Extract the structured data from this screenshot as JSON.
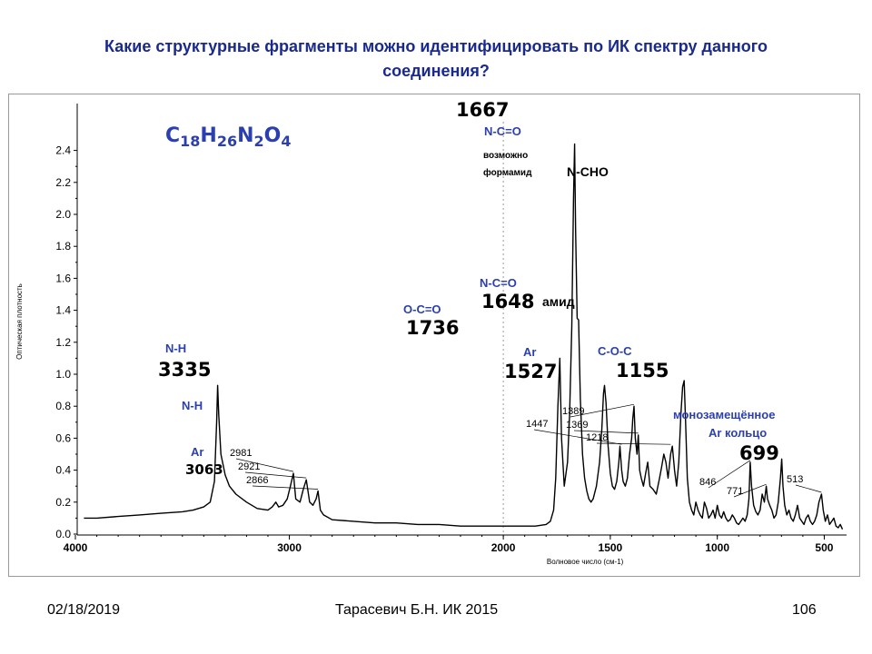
{
  "slide": {
    "title_line1": "Какие структурные фрагменты можно идентифицировать по ИК спектру данного",
    "title_line2": "соединения?"
  },
  "footer": {
    "date": "02/18/2019",
    "author": "Тарасевич Б.Н.  ИК 2015",
    "page": "106"
  },
  "chart_data": {
    "type": "line",
    "x_reversed": true,
    "xlim": [
      4000,
      400
    ],
    "ylim": [
      0,
      2.5
    ],
    "x_ticks": [
      4000,
      3000,
      2000,
      1500,
      1000,
      500
    ],
    "y_ticks": [
      0.0,
      0.2,
      0.4,
      0.6,
      0.8,
      1.0,
      1.2,
      1.4,
      1.6,
      1.8,
      2.0,
      2.2,
      2.4
    ],
    "xlabel": "Волновое число (см-1)",
    "ylabel": "Оптическая плотность",
    "formula": {
      "c": "C",
      "n1": "18",
      "h": "H",
      "n2": "26",
      "n": "N",
      "n3": "2",
      "o": "O",
      "n4": "4"
    },
    "colors": {
      "line": "#000000",
      "annotation": "#2b3fb0",
      "axis": "#000000"
    },
    "series": [
      {
        "x": [
          3960,
          3900,
          3800,
          3700,
          3600,
          3500,
          3450,
          3400,
          3370,
          3350,
          3340,
          3335,
          3330,
          3320,
          3300,
          3280,
          3250,
          3200,
          3150,
          3100,
          3080,
          3063,
          3050,
          3030,
          3010,
          2995,
          2981,
          2970,
          2950,
          2935,
          2921,
          2905,
          2890,
          2875,
          2866,
          2855,
          2840,
          2800,
          2700,
          2600,
          2500,
          2400,
          2300,
          2200,
          2100,
          2000,
          1950,
          1900,
          1850,
          1800,
          1780,
          1765,
          1755,
          1745,
          1736,
          1728,
          1715,
          1700,
          1690,
          1680,
          1672,
          1667,
          1662,
          1655,
          1648,
          1640,
          1630,
          1620,
          1610,
          1600,
          1590,
          1580,
          1565,
          1550,
          1540,
          1532,
          1527,
          1520,
          1510,
          1500,
          1490,
          1480,
          1470,
          1460,
          1455,
          1447,
          1440,
          1430,
          1420,
          1410,
          1400,
          1395,
          1389,
          1383,
          1375,
          1369,
          1363,
          1355,
          1345,
          1335,
          1325,
          1315,
          1300,
          1285,
          1270,
          1260,
          1250,
          1240,
          1230,
          1218,
          1210,
          1200,
          1190,
          1180,
          1170,
          1162,
          1155,
          1148,
          1140,
          1130,
          1120,
          1110,
          1100,
          1090,
          1080,
          1070,
          1060,
          1050,
          1040,
          1030,
          1020,
          1010,
          1000,
          990,
          980,
          970,
          960,
          950,
          940,
          930,
          920,
          910,
          900,
          890,
          880,
          870,
          860,
          852,
          846,
          840,
          830,
          820,
          810,
          800,
          790,
          780,
          771,
          765,
          755,
          745,
          735,
          725,
          715,
          705,
          699,
          693,
          685,
          675,
          665,
          655,
          645,
          635,
          625,
          615,
          605,
          595,
          585,
          575,
          565,
          555,
          545,
          535,
          525,
          513,
          505,
          495,
          485,
          475,
          465,
          455,
          445,
          435,
          425,
          415
        ],
        "y": [
          0.1,
          0.1,
          0.11,
          0.12,
          0.13,
          0.14,
          0.15,
          0.17,
          0.2,
          0.33,
          0.7,
          0.93,
          0.75,
          0.5,
          0.37,
          0.3,
          0.25,
          0.2,
          0.16,
          0.15,
          0.17,
          0.2,
          0.17,
          0.18,
          0.22,
          0.3,
          0.38,
          0.22,
          0.2,
          0.28,
          0.34,
          0.2,
          0.18,
          0.22,
          0.27,
          0.15,
          0.12,
          0.09,
          0.08,
          0.07,
          0.07,
          0.06,
          0.06,
          0.05,
          0.05,
          0.05,
          0.05,
          0.05,
          0.05,
          0.06,
          0.08,
          0.15,
          0.35,
          0.8,
          1.1,
          0.6,
          0.3,
          0.45,
          0.75,
          1.3,
          2.1,
          2.44,
          1.9,
          1.35,
          1.34,
          0.85,
          0.5,
          0.35,
          0.27,
          0.22,
          0.2,
          0.22,
          0.3,
          0.45,
          0.65,
          0.88,
          0.93,
          0.82,
          0.55,
          0.38,
          0.3,
          0.28,
          0.33,
          0.45,
          0.55,
          0.4,
          0.33,
          0.3,
          0.35,
          0.5,
          0.6,
          0.72,
          0.8,
          0.6,
          0.5,
          0.62,
          0.4,
          0.35,
          0.3,
          0.38,
          0.45,
          0.3,
          0.28,
          0.25,
          0.35,
          0.42,
          0.5,
          0.45,
          0.35,
          0.5,
          0.55,
          0.4,
          0.3,
          0.45,
          0.75,
          0.92,
          0.96,
          0.7,
          0.35,
          0.2,
          0.15,
          0.12,
          0.2,
          0.15,
          0.12,
          0.1,
          0.2,
          0.16,
          0.1,
          0.12,
          0.15,
          0.1,
          0.18,
          0.12,
          0.1,
          0.14,
          0.1,
          0.08,
          0.09,
          0.12,
          0.1,
          0.07,
          0.06,
          0.08,
          0.1,
          0.08,
          0.12,
          0.22,
          0.45,
          0.3,
          0.18,
          0.14,
          0.12,
          0.15,
          0.25,
          0.2,
          0.3,
          0.22,
          0.18,
          0.15,
          0.1,
          0.12,
          0.2,
          0.35,
          0.47,
          0.3,
          0.18,
          0.12,
          0.15,
          0.1,
          0.08,
          0.12,
          0.18,
          0.1,
          0.08,
          0.06,
          0.1,
          0.12,
          0.08,
          0.06,
          0.08,
          0.12,
          0.2,
          0.25,
          0.15,
          0.08,
          0.12,
          0.06,
          0.08,
          0.1,
          0.05,
          0.04,
          0.06,
          0.03
        ]
      }
    ],
    "annotations": [
      {
        "text": "1667",
        "x": 1667,
        "y": 2.44,
        "color": "black",
        "size": "big"
      },
      {
        "text": "N-C=O",
        "x": 1667,
        "y": 2.44,
        "color": "blue",
        "size": "small"
      },
      {
        "text": "возможно",
        "x": 1667,
        "y": 2.44,
        "color": "black",
        "size": "tiny"
      },
      {
        "text": "формамид",
        "x": 1667,
        "y": 2.44,
        "color": "black",
        "size": "tiny"
      },
      {
        "text": "N-CHO",
        "x": 1667,
        "y": 2.44,
        "color": "black",
        "size": "small"
      },
      {
        "text": "N-C=O",
        "x": 1648,
        "y": 1.34,
        "color": "blue",
        "size": "small"
      },
      {
        "text": "1648",
        "x": 1648,
        "y": 1.34,
        "color": "black",
        "size": "big"
      },
      {
        "text": "амид",
        "x": 1648,
        "y": 1.34,
        "color": "black",
        "size": "small"
      },
      {
        "text": "O-C=O",
        "x": 1736,
        "y": 1.1,
        "color": "blue",
        "size": "small"
      },
      {
        "text": "1736",
        "x": 1736,
        "y": 1.1,
        "color": "black",
        "size": "big"
      },
      {
        "text": "N-H",
        "x": 3335,
        "y": 0.93,
        "color": "blue",
        "size": "small"
      },
      {
        "text": "3335",
        "x": 3335,
        "y": 0.93,
        "color": "black",
        "size": "big"
      },
      {
        "text": "N-H",
        "x": 3290,
        "y": 0.3,
        "color": "blue",
        "size": "small"
      },
      {
        "text": "Ar",
        "x": 3063,
        "y": 0.2,
        "color": "blue",
        "size": "small"
      },
      {
        "text": "3063",
        "x": 3063,
        "y": 0.2,
        "color": "black",
        "size": "medium"
      },
      {
        "text": "2981",
        "x": 2981,
        "y": 0.38,
        "color": "black",
        "size": "tiny"
      },
      {
        "text": "2921",
        "x": 2921,
        "y": 0.34,
        "color": "black",
        "size": "tiny"
      },
      {
        "text": "2866",
        "x": 2866,
        "y": 0.27,
        "color": "black",
        "size": "tiny"
      },
      {
        "text": "Ar",
        "x": 1527,
        "y": 0.93,
        "color": "blue",
        "size": "small"
      },
      {
        "text": "1527",
        "x": 1527,
        "y": 0.93,
        "color": "black",
        "size": "big"
      },
      {
        "text": "1447",
        "x": 1447,
        "y": 0.55,
        "color": "black",
        "size": "tiny"
      },
      {
        "text": "1389",
        "x": 1389,
        "y": 0.8,
        "color": "black",
        "size": "tiny"
      },
      {
        "text": "1369",
        "x": 1369,
        "y": 0.62,
        "color": "black",
        "size": "tiny"
      },
      {
        "text": "1218",
        "x": 1218,
        "y": 0.55,
        "color": "black",
        "size": "tiny"
      },
      {
        "text": "C-O-C",
        "x": 1155,
        "y": 0.96,
        "color": "blue",
        "size": "small"
      },
      {
        "text": "1155",
        "x": 1155,
        "y": 0.96,
        "color": "black",
        "size": "big"
      },
      {
        "text": "монозамещённое",
        "x": 699,
        "y": 0.47,
        "color": "blue",
        "size": "small"
      },
      {
        "text": "Ar кольцо",
        "x": 699,
        "y": 0.47,
        "color": "blue",
        "size": "small"
      },
      {
        "text": "699",
        "x": 699,
        "y": 0.47,
        "color": "black",
        "size": "big"
      },
      {
        "text": "846",
        "x": 846,
        "y": 0.45,
        "color": "black",
        "size": "tiny"
      },
      {
        "text": "771",
        "x": 771,
        "y": 0.3,
        "color": "black",
        "size": "tiny"
      },
      {
        "text": "513",
        "x": 513,
        "y": 0.25,
        "color": "black",
        "size": "tiny"
      }
    ]
  }
}
